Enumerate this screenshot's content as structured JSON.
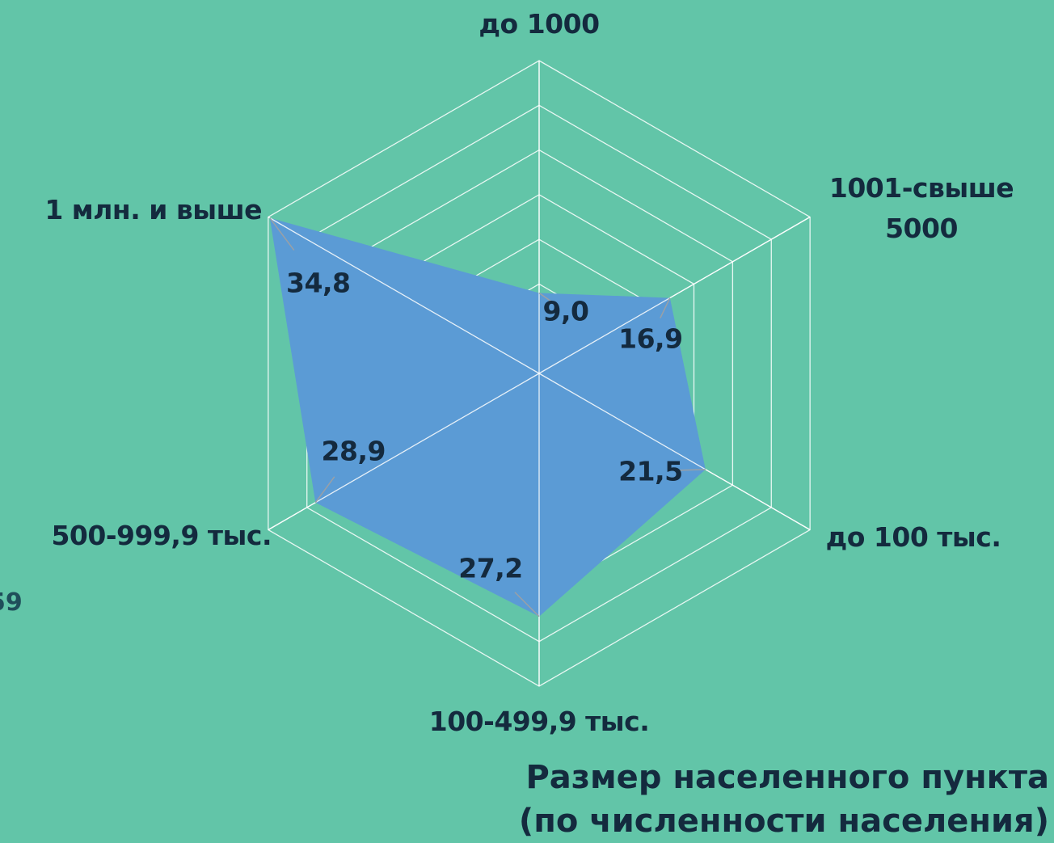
{
  "chart_data": {
    "type": "radar",
    "categories": [
      "до 1000",
      "1001-свыше 5000",
      "до 100 тыс.",
      "100-499,9 тыс.",
      "500-999,9 тыс.",
      "1 млн. и выше"
    ],
    "values": [
      9.0,
      16.9,
      21.5,
      27.2,
      28.9,
      34.8
    ],
    "value_labels": [
      "9,0",
      "16,9",
      "21,5",
      "27,2",
      "28,9",
      "34,8"
    ],
    "color": "#5b9bd5",
    "ylim": [
      0,
      35
    ],
    "yticks": [
      0,
      5,
      10,
      15,
      20,
      25,
      30,
      35
    ],
    "grid": true,
    "axis_title": "Размер населенного пункта (по численности населения)",
    "annotations": [
      "59"
    ]
  }
}
